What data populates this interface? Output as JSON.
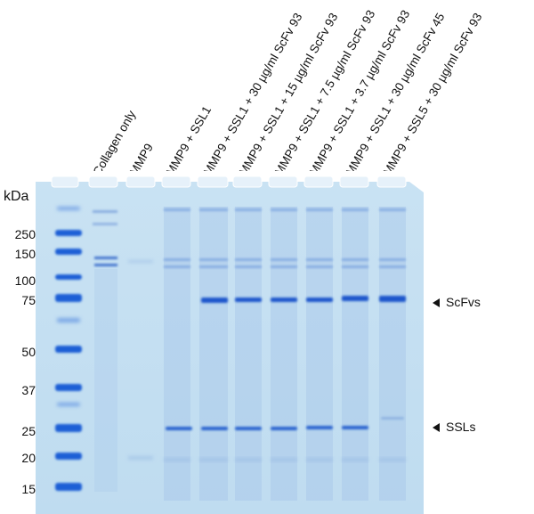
{
  "axis": {
    "unit": "kDa"
  },
  "lanes": [
    "Collagen only",
    "MMP9",
    "MMP9 + SSL1",
    "MMP9 + SSL1 + 30 µg/ml ScFv 93",
    "MMP9 + SSL1 + 15 µg/ml ScFv 93",
    "MMP9 + SSL1 + 7.5 µg/ml ScFv 93",
    "MMP9 + SSL1 + 3.7 µg/ml ScFv 93",
    "MMP9 + SSL1 + 30 µg/ml ScFv 45",
    "MMP9 + SSL5 + 30 µg/ml ScFv 93"
  ],
  "ladder": [
    "250",
    "150",
    "100",
    "75",
    "50",
    "37",
    "25",
    "20",
    "15"
  ],
  "markers": {
    "scfv": "ScFvs",
    "ssl": "SSLs"
  },
  "colors": {
    "gel": "#c4dff1",
    "ladder_band": "#1f5fd6",
    "sample_band": "#2e6fd8",
    "faint_band": "#7fa6dc"
  }
}
